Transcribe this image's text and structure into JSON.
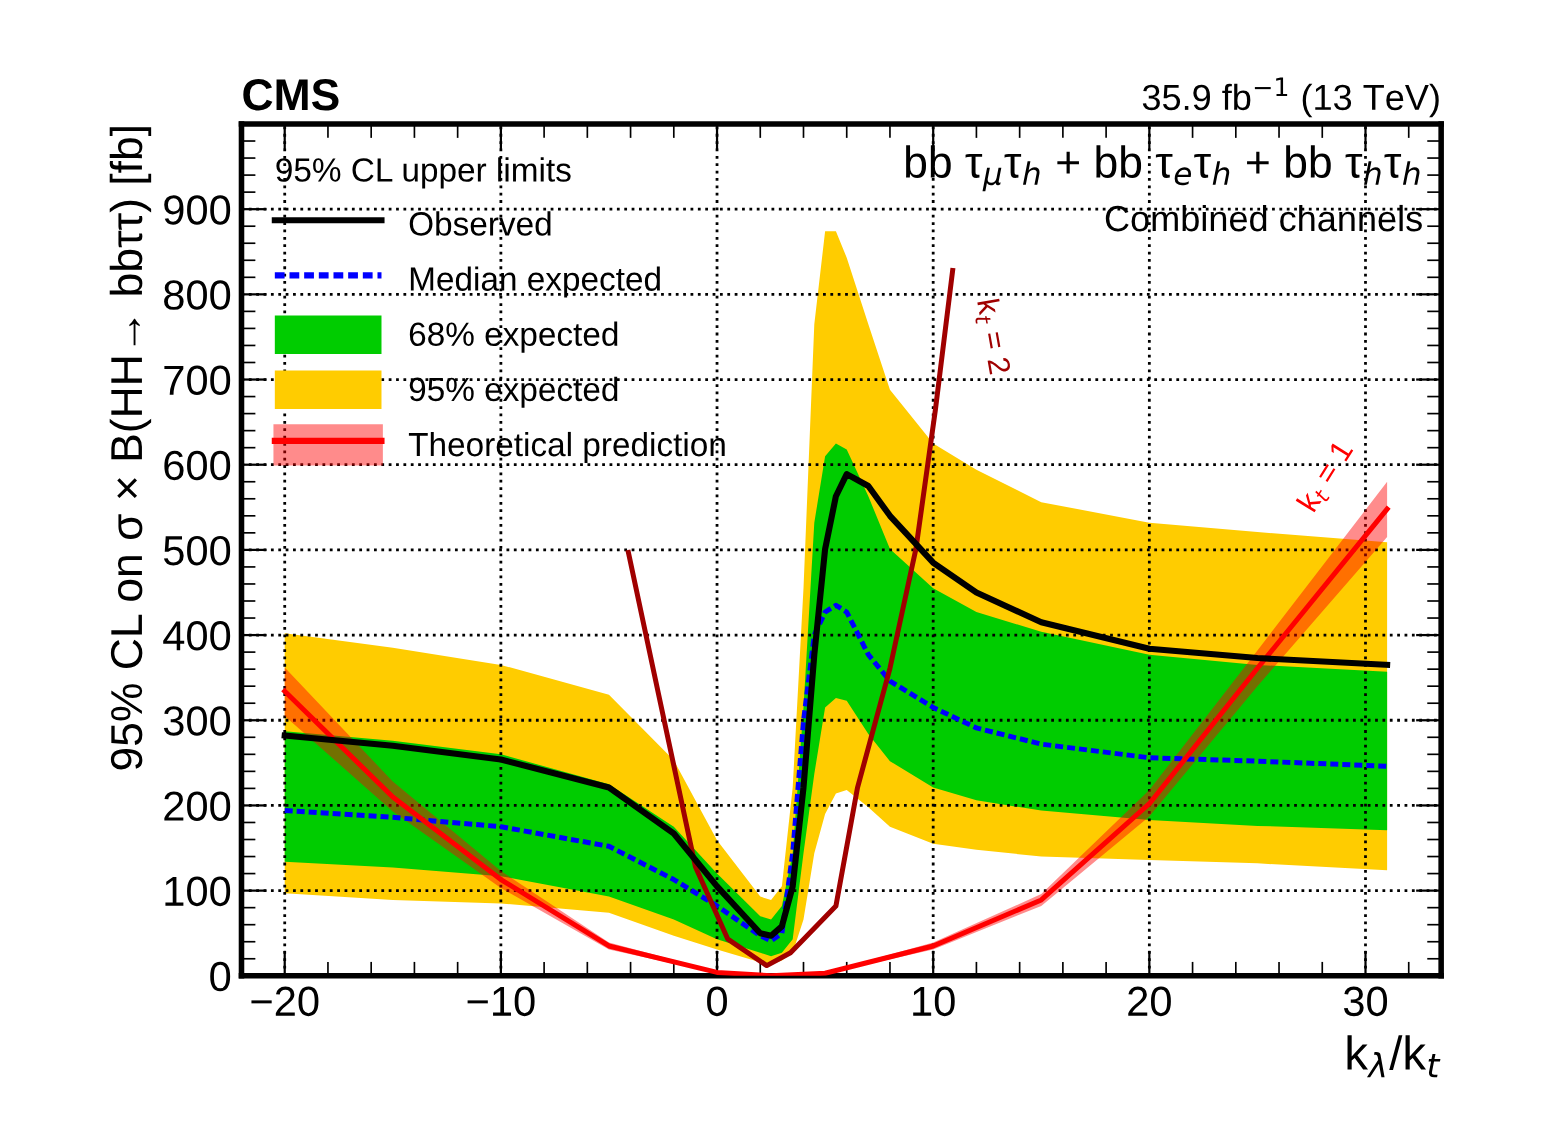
{
  "chart_data": {
    "type": "line",
    "title": "CMS",
    "subtitle": "35.9 fb$^{−1}$ (13 TeV)",
    "xlabel": "k$_{λ}$/k$_{t}$",
    "ylabel": "95% CL on σ × B(HH→ bbττ) [fb]",
    "legend_title": "95% CL upper limits",
    "annotations": [
      "bb τ$_{μ}$τ$_{h}$ + bb τ$_{e}$τ$_{h}$ + bb τ$_{h}$τ$_{h}$",
      "Combined channels",
      "k$_{t}$ = 2",
      "k$_{t}$ = 1"
    ],
    "xlim": [
      -22,
      33.5
    ],
    "ylim": [
      0,
      1000
    ],
    "xticks": [
      {
        "value": -20,
        "label": "−20"
      },
      {
        "value": -10,
        "label": "−10"
      },
      0,
      10,
      20,
      30
    ],
    "yticks": [
      0,
      100,
      200,
      300,
      400,
      500,
      600,
      700,
      800,
      900
    ],
    "grid": true,
    "legend": "top left",
    "marker": "none",
    "series": [
      {
        "name": "Observed",
        "color": "#000000",
        "line_style": "solid",
        "x": [
          -20,
          -15,
          -10,
          -5,
          -2,
          0,
          2,
          2.5,
          3,
          3.5,
          4,
          4.5,
          5,
          5.5,
          6,
          7,
          8,
          10,
          12,
          15,
          20,
          25,
          31
        ],
        "values": [
          282,
          270,
          254,
          221,
          167,
          105,
          50,
          47,
          58,
          105,
          221,
          377,
          501,
          563,
          589,
          575,
          540,
          485,
          450,
          415,
          384,
          373,
          365
        ]
      },
      {
        "name": "Median expected",
        "color": "#0000ff",
        "line_style": "dashed",
        "x": [
          -20,
          -15,
          -10,
          -5,
          -2,
          0,
          2,
          2.5,
          3,
          3.5,
          4,
          4.5,
          5,
          5.5,
          6,
          7,
          8,
          10,
          12,
          15,
          20,
          25,
          31
        ],
        "values": [
          194,
          186,
          175,
          152,
          113,
          82,
          47,
          41,
          50,
          144,
          299,
          400,
          427,
          435,
          427,
          377,
          346,
          315,
          291,
          272,
          256,
          252,
          246
        ]
      },
      {
        "name": "68% expected",
        "type": "area",
        "color": "#00cc00",
        "x": [
          -20,
          -15,
          -10,
          -5,
          -2,
          0,
          2,
          2.5,
          3,
          3.5,
          4,
          4.5,
          5,
          5.5,
          6,
          7,
          8,
          10,
          12,
          15,
          20,
          25,
          31
        ],
        "values": [
          null,
          null,
          null,
          null,
          null,
          null,
          null,
          null,
          null,
          null,
          null,
          null,
          null,
          null,
          null,
          null,
          null,
          null,
          null,
          null,
          null,
          null,
          null
        ],
        "lower": [
          134,
          127,
          117,
          93,
          66,
          43,
          27,
          23,
          27,
          43,
          144,
          237,
          315,
          326,
          323,
          284,
          252,
          221,
          206,
          194,
          183,
          176,
          171
        ],
        "upper": [
          287,
          276,
          260,
          225,
          175,
          120,
          70,
          66,
          82,
          144,
          315,
          532,
          610,
          625,
          618,
          563,
          501,
          455,
          427,
          404,
          377,
          365,
          357
        ]
      },
      {
        "name": "95% expected",
        "type": "area",
        "color": "#ffcc00",
        "x": [
          -20,
          -15,
          -10,
          -5,
          -2,
          0,
          2,
          2.5,
          3,
          3.5,
          4,
          4.5,
          5,
          5.5,
          6,
          7,
          8,
          10,
          12,
          15,
          20,
          25,
          31
        ],
        "values": [
          null,
          null,
          null,
          null,
          null,
          null,
          null,
          null,
          null,
          null,
          null,
          null,
          null,
          null,
          null,
          null,
          null,
          null,
          null,
          null,
          null,
          null,
          null
        ],
        "lower": [
          97,
          89,
          85,
          74,
          47,
          31,
          16,
          13,
          18,
          27,
          66,
          144,
          190,
          214,
          218,
          198,
          175,
          155,
          148,
          140,
          136,
          132,
          124
        ],
        "upper": [
          402,
          385,
          365,
          330,
          253,
          159,
          93,
          89,
          105,
          221,
          455,
          765,
          874,
          874,
          843,
          765,
          688,
          625,
          594,
          556,
          532,
          521,
          509
        ]
      },
      {
        "name": "Theoretical prediction",
        "color": "#ff0000",
        "line_style": "solid",
        "x": [
          -20,
          -15,
          -10,
          -5,
          0,
          2.5,
          5,
          10,
          15,
          20,
          25,
          31
        ],
        "values": [
          334,
          210,
          113,
          35,
          4,
          0,
          3,
          35,
          89,
          202,
          361,
          548
        ],
        "lower": [
          305,
          193,
          103,
          31,
          3,
          0,
          2,
          31,
          82,
          187,
          340,
          515
        ],
        "upper": [
          362,
          228,
          123,
          39,
          5,
          1,
          4,
          39,
          96,
          218,
          382,
          580
        ]
      },
      {
        "color": "#a00000",
        "line_style": "solid",
        "x": [
          -4.1,
          -2.7,
          -1,
          0.5,
          2.3,
          3.4,
          5.5,
          6.5,
          8,
          9.2,
          10.1,
          10.9
        ],
        "values": [
          497,
          330,
          128,
          43,
          12,
          27,
          82,
          221,
          361,
          501,
          664,
          828
        ]
      }
    ]
  }
}
